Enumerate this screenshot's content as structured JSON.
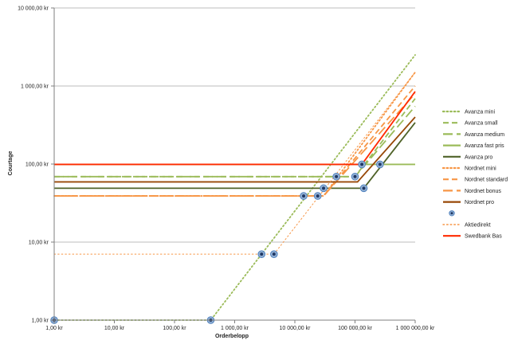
{
  "chart_data": {
    "type": "line",
    "x_scale": "log",
    "y_scale": "log",
    "xlim": [
      1,
      1000000
    ],
    "ylim": [
      1,
      10000
    ],
    "xlabel": "Orderbelopp",
    "ylabel": "Courtage",
    "x_ticks": [
      "1,00 kr",
      "10,00 kr",
      "100,00 kr",
      "1 000,00 kr",
      "10 000,00 kr",
      "100 000,00 kr",
      "1 000 000,00 kr"
    ],
    "y_ticks": [
      "1,00 kr",
      "10,00 kr",
      "100,00 kr",
      "1 000,00 kr",
      "10 000,00 kr"
    ],
    "grid": true,
    "legend_position": "right",
    "series": [
      {
        "name": "Avanza mini",
        "color": "#9bbb59",
        "dash": "dot",
        "width": 1.8,
        "points": [
          [
            1,
            1
          ],
          [
            400,
            1
          ],
          [
            1000000,
            2500
          ]
        ]
      },
      {
        "name": "Avanza small",
        "color": "#9bbb59",
        "dash": "dash",
        "width": 1.8,
        "points": [
          [
            1,
            69
          ],
          [
            100000,
            69
          ],
          [
            1000000,
            690
          ]
        ]
      },
      {
        "name": "Avanza medium",
        "color": "#9bbb59",
        "dash": "longdash",
        "width": 1.8,
        "points": [
          [
            1,
            69
          ],
          [
            100000,
            69
          ],
          [
            1000000,
            550
          ]
        ]
      },
      {
        "name": "Avanza fast pris",
        "color": "#9bbb59",
        "dash": "solid",
        "width": 1.8,
        "points": [
          [
            1,
            99
          ],
          [
            1000000,
            99
          ]
        ]
      },
      {
        "name": "Avanza pro",
        "color": "#4f6228",
        "dash": "solid",
        "width": 1.8,
        "points": [
          [
            1,
            49
          ],
          [
            140000,
            49
          ],
          [
            1000000,
            340
          ]
        ]
      },
      {
        "name": "Nordnet mini",
        "color": "#f79646",
        "dash": "dot",
        "width": 1.8,
        "points": [
          [
            1,
            39
          ],
          [
            30000,
            39
          ],
          [
            1000000,
            1500
          ]
        ]
      },
      {
        "name": "Nordnet standard",
        "color": "#f79646",
        "dash": "dash",
        "width": 1.8,
        "points": [
          [
            1,
            39
          ],
          [
            30000,
            39
          ],
          [
            1000000,
            1000
          ]
        ]
      },
      {
        "name": "Nordnet bonus",
        "color": "#f79646",
        "dash": "longdash",
        "width": 1.8,
        "points": [
          [
            1,
            39
          ],
          [
            30000,
            39
          ],
          [
            1000000,
            800
          ]
        ]
      },
      {
        "name": "Nordnet pro",
        "color": "#984807",
        "dash": "solid",
        "width": 1.8,
        "points": [
          [
            1,
            59
          ],
          [
            110000,
            59
          ],
          [
            1000000,
            400
          ]
        ]
      },
      {
        "name": "Aktiedirekt",
        "color": "#f79646",
        "dash": "dot",
        "width": 1,
        "points": [
          [
            1,
            7
          ],
          [
            4500,
            7
          ],
          [
            1000000,
            1500
          ]
        ]
      },
      {
        "name": "Swedbank Bas",
        "color": "#ff2a00",
        "dash": "solid",
        "width": 1.8,
        "points": [
          [
            1,
            99
          ],
          [
            130000,
            99
          ],
          [
            1000000,
            850
          ]
        ]
      }
    ],
    "markers": {
      "legend_entry": "",
      "points": [
        [
          1,
          1
        ],
        [
          400,
          1
        ],
        [
          2800,
          7
        ],
        [
          4500,
          7
        ],
        [
          14000,
          39
        ],
        [
          24000,
          39
        ],
        [
          30000,
          49
        ],
        [
          49000,
          69
        ],
        [
          100000,
          69
        ],
        [
          130000,
          99
        ],
        [
          140000,
          49
        ],
        [
          260000,
          99
        ]
      ]
    }
  }
}
